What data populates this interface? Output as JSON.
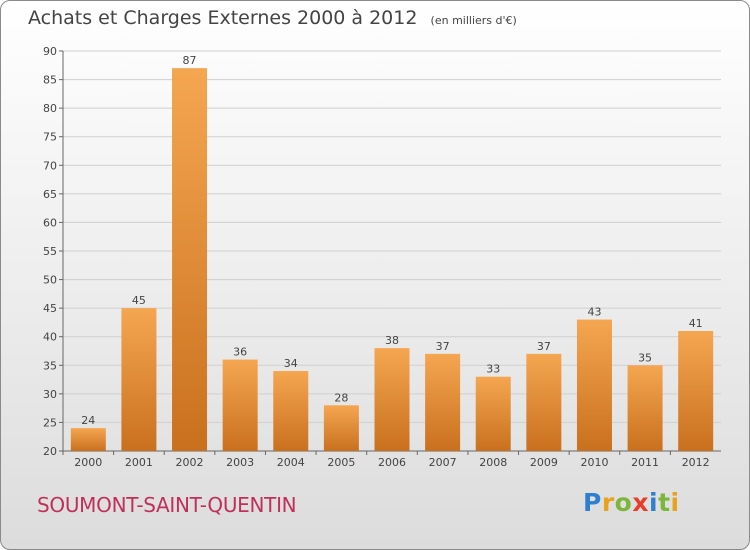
{
  "title": "Achats et Charges Externes 2000 à 2012",
  "unit_note": "(en milliers d'€)",
  "town": "SOUMONT-SAINT-QUENTIN",
  "logo": {
    "letters": [
      "P",
      "r",
      "o",
      "x",
      "i",
      "t",
      "i"
    ],
    "colors": [
      "#2f7fd0",
      "#e8a21c",
      "#7cb63a",
      "#e83c2c",
      "#2f7fd0",
      "#7cb63a",
      "#e8a21c"
    ]
  },
  "colors": {
    "bar_light": "#f5a650",
    "bar_dark": "#c9701e",
    "town_text": "#c0305a",
    "grid": "#cfcfcf"
  },
  "chart_data": {
    "type": "bar",
    "title": "Achats et Charges Externes 2000 à 2012",
    "subtitle": "(en milliers d'€)",
    "xlabel": "",
    "ylabel": "",
    "categories": [
      "2000",
      "2001",
      "2002",
      "2003",
      "2004",
      "2005",
      "2006",
      "2007",
      "2008",
      "2009",
      "2010",
      "2011",
      "2012"
    ],
    "values": [
      24,
      45,
      87,
      36,
      34,
      28,
      38,
      37,
      33,
      37,
      43,
      35,
      41
    ],
    "ylim": [
      20,
      90
    ],
    "yticks": [
      20,
      25,
      30,
      35,
      40,
      45,
      50,
      55,
      60,
      65,
      70,
      75,
      80,
      85,
      90
    ],
    "grid": true
  }
}
